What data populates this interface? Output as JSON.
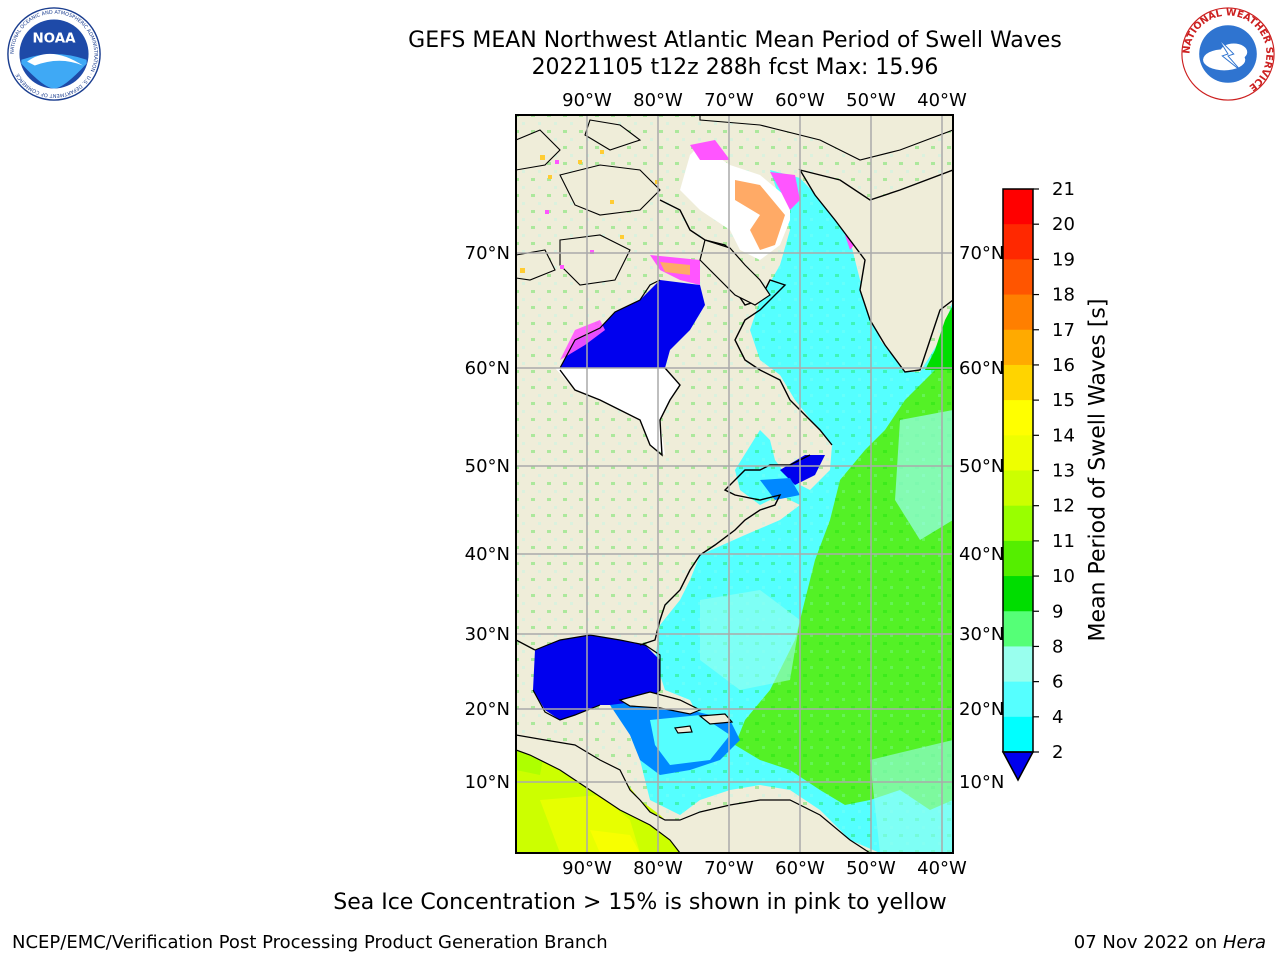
{
  "header": {
    "title_line1": "GEFS MEAN Northwest Atlantic Mean Period of Swell Waves",
    "title_line2": "20221105 t12z 288h fcst   Max: 15.96"
  },
  "logos": {
    "noaa_text": "NOAA",
    "noaa_ring_text": "NATIONAL OCEANIC AND ATMOSPHERIC ADMINISTRATION · U.S. DEPARTMENT OF COMMERCE",
    "nws_ring_text": "NATIONAL WEATHER SERVICE"
  },
  "map": {
    "longitude_labels": [
      "90°W",
      "80°W",
      "70°W",
      "60°W",
      "50°W",
      "40°W"
    ],
    "latitude_labels": [
      "70°N",
      "60°N",
      "50°N",
      "40°N",
      "30°N",
      "20°N",
      "10°N"
    ]
  },
  "colorbar": {
    "label": "Mean Period of Swell Waves [s]",
    "ticks": [
      "21",
      "20",
      "19",
      "18",
      "17",
      "16",
      "15",
      "14",
      "13",
      "12",
      "11",
      "10",
      "9",
      "8",
      "6",
      "4",
      "2"
    ],
    "colors": [
      "#ff0000",
      "#ff2800",
      "#ff5500",
      "#ff7f00",
      "#ffaa00",
      "#ffd400",
      "#ffff00",
      "#eeff00",
      "#ccff00",
      "#99ff00",
      "#55ee00",
      "#00dd00",
      "#55ff77",
      "#99ffee",
      "#55ffff",
      "#00ffff",
      "#0088ff",
      "#0055ff"
    ]
  },
  "caption": "Sea Ice Concentration > 15% is shown in pink to yellow",
  "footer": {
    "left": "NCEP/EMC/Verification Post Processing Product Generation Branch",
    "date": "07 Nov 2022 on ",
    "host": "Hera"
  }
}
